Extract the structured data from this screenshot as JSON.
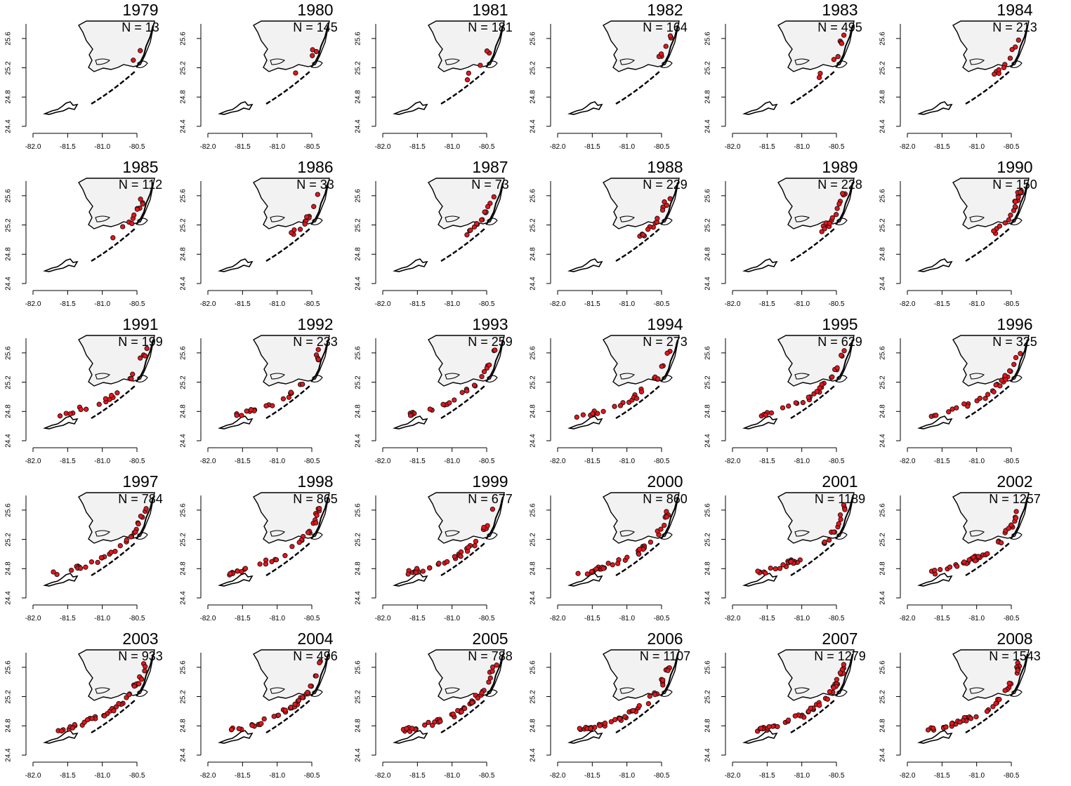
{
  "map": {
    "y_ticks": [
      "25.6",
      "25.2",
      "24.8",
      "24.4"
    ],
    "x_ticks": [
      "-82.0",
      "-81.5",
      "-81.0",
      "-80.5"
    ],
    "land_fill": "#f2f2f2",
    "point_fill": "#e8141b",
    "point_stroke": "#111111"
  },
  "panels": [
    {
      "year": "1979",
      "count_label": "N = 13"
    },
    {
      "year": "1980",
      "count_label": "N = 145"
    },
    {
      "year": "1981",
      "count_label": "N = 181"
    },
    {
      "year": "1982",
      "count_label": "N = 164"
    },
    {
      "year": "1983",
      "count_label": "N = 495"
    },
    {
      "year": "1984",
      "count_label": "N = 213"
    },
    {
      "year": "1985",
      "count_label": "N = 112"
    },
    {
      "year": "1986",
      "count_label": "N = 33"
    },
    {
      "year": "1987",
      "count_label": "N = 73"
    },
    {
      "year": "1988",
      "count_label": "N = 229"
    },
    {
      "year": "1989",
      "count_label": "N = 228"
    },
    {
      "year": "1990",
      "count_label": "N = 150"
    },
    {
      "year": "1991",
      "count_label": "N = 199"
    },
    {
      "year": "1992",
      "count_label": "N = 233"
    },
    {
      "year": "1993",
      "count_label": "N = 259"
    },
    {
      "year": "1994",
      "count_label": "N = 273"
    },
    {
      "year": "1995",
      "count_label": "N = 629"
    },
    {
      "year": "1996",
      "count_label": "N = 325"
    },
    {
      "year": "1997",
      "count_label": "N = 784"
    },
    {
      "year": "1998",
      "count_label": "N = 865"
    },
    {
      "year": "1999",
      "count_label": "N = 677"
    },
    {
      "year": "2000",
      "count_label": "N = 860"
    },
    {
      "year": "2001",
      "count_label": "N = 1189"
    },
    {
      "year": "2002",
      "count_label": "N = 1257"
    },
    {
      "year": "2003",
      "count_label": "N = 933"
    },
    {
      "year": "2004",
      "count_label": "N = 496"
    },
    {
      "year": "2005",
      "count_label": "N = 788"
    },
    {
      "year": "2006",
      "count_label": "N = 1107"
    },
    {
      "year": "2007",
      "count_label": "N = 1279"
    },
    {
      "year": "2008",
      "count_label": "N = 1543"
    }
  ]
}
